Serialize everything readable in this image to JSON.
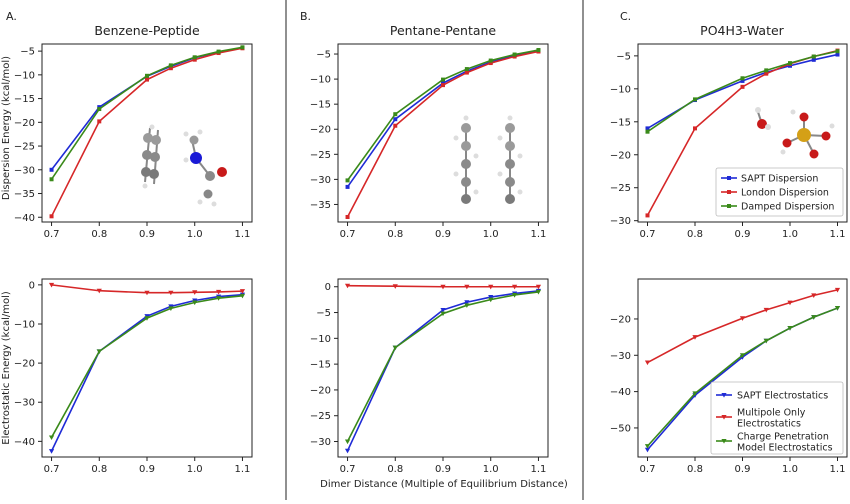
{
  "panels": [
    {
      "label": "A.",
      "title": "Benzene-Peptide"
    },
    {
      "label": "B.",
      "title": "Pentane-Pentane"
    },
    {
      "label": "C.",
      "title": "PO4H3-Water"
    }
  ],
  "ylabel_top": "Dispersion Energy (kcal/mol)",
  "ylabel_bottom": "Electrostatic Energy (kcal/mol)",
  "xlabel": "Dimer Distance (Multiple of Equilibrium Distance)",
  "legend_top": [
    "SAPT Dispersion",
    "London Dispersion",
    "Damped Dispersion"
  ],
  "legend_bottom": [
    [
      "SAPT Electrostatics"
    ],
    [
      "Multipole Only",
      "Electrostatics"
    ],
    [
      "Charge Penetration",
      "Model Electrostatics"
    ]
  ],
  "colors": {
    "sapt": "#1f2bd6",
    "london": "#d62728",
    "damped": "#3a8a1a"
  },
  "chart_data": [
    {
      "type": "line",
      "panel": "A.",
      "title": "Benzene-Peptide",
      "ylabel": "Dispersion Energy (kcal/mol)",
      "x": [
        0.7,
        0.8,
        0.9,
        0.95,
        1.0,
        1.05,
        1.1
      ],
      "xticks": [
        0.7,
        0.8,
        0.9,
        1.0,
        1.1
      ],
      "ylim": [
        -41,
        -3.5
      ],
      "yticks": [
        -40,
        -35,
        -30,
        -25,
        -20,
        -15,
        -10,
        -5
      ],
      "series": [
        {
          "name": "SAPT Dispersion",
          "values": [
            -30.0,
            -16.8,
            -10.3,
            -8.2,
            -6.4,
            -5.2,
            -4.3
          ]
        },
        {
          "name": "London Dispersion",
          "values": [
            -39.8,
            -19.8,
            -11.0,
            -8.6,
            -6.8,
            -5.4,
            -4.4
          ]
        },
        {
          "name": "Damped Dispersion",
          "values": [
            -32.0,
            -17.2,
            -10.2,
            -8.0,
            -6.3,
            -5.1,
            -4.2
          ]
        }
      ]
    },
    {
      "type": "line",
      "panel": "B.",
      "title": "Pentane-Pentane",
      "x": [
        0.7,
        0.8,
        0.9,
        0.95,
        1.0,
        1.05,
        1.1
      ],
      "xticks": [
        0.7,
        0.8,
        0.9,
        1.0,
        1.1
      ],
      "ylim": [
        -38.5,
        -3
      ],
      "yticks": [
        -35,
        -30,
        -25,
        -20,
        -15,
        -10,
        -5
      ],
      "series": [
        {
          "name": "SAPT Dispersion",
          "values": [
            -31.5,
            -18.0,
            -10.8,
            -8.4,
            -6.6,
            -5.3,
            -4.4
          ]
        },
        {
          "name": "London Dispersion",
          "values": [
            -37.5,
            -19.3,
            -11.2,
            -8.7,
            -6.8,
            -5.5,
            -4.5
          ]
        },
        {
          "name": "Damped Dispersion",
          "values": [
            -30.2,
            -17.0,
            -10.1,
            -8.0,
            -6.3,
            -5.1,
            -4.2
          ]
        }
      ]
    },
    {
      "type": "line",
      "panel": "C.",
      "title": "PO4H3-Water",
      "x": [
        0.7,
        0.8,
        0.9,
        0.95,
        1.0,
        1.05,
        1.1
      ],
      "xticks": [
        0.7,
        0.8,
        0.9,
        1.0,
        1.1
      ],
      "ylim": [
        -30.2,
        -3.2
      ],
      "yticks": [
        -30,
        -25,
        -20,
        -15,
        -10,
        -5
      ],
      "legend": "right",
      "series": [
        {
          "name": "SAPT Dispersion",
          "values": [
            -16.0,
            -11.7,
            -8.8,
            -7.5,
            -6.5,
            -5.6,
            -4.8
          ]
        },
        {
          "name": "London Dispersion",
          "values": [
            -29.2,
            -16.0,
            -9.7,
            -7.7,
            -6.2,
            -5.1,
            -4.2
          ]
        },
        {
          "name": "Damped Dispersion",
          "values": [
            -16.5,
            -11.6,
            -8.4,
            -7.2,
            -6.1,
            -5.1,
            -4.3
          ]
        }
      ]
    },
    {
      "type": "line",
      "panel": "A.",
      "ylabel": "Electrostatic Energy (kcal/mol)",
      "x": [
        0.7,
        0.8,
        0.9,
        0.95,
        1.0,
        1.05,
        1.1
      ],
      "xticks": [
        0.7,
        0.8,
        0.9,
        1.0,
        1.1
      ],
      "ylim": [
        -44,
        1.5
      ],
      "yticks": [
        -40,
        -30,
        -20,
        -10,
        0
      ],
      "series": [
        {
          "name": "SAPT Electrostatics",
          "values": [
            -42.5,
            -17.0,
            -8.0,
            -5.5,
            -4.0,
            -3.0,
            -2.5
          ]
        },
        {
          "name": "Multipole Only Electrostatics",
          "values": [
            0.0,
            -1.5,
            -2.0,
            -2.0,
            -1.9,
            -1.8,
            -1.6
          ]
        },
        {
          "name": "Charge Penetration Model Electrostatics",
          "values": [
            -39.0,
            -17.0,
            -8.5,
            -6.0,
            -4.5,
            -3.4,
            -2.8
          ]
        }
      ]
    },
    {
      "type": "line",
      "panel": "B.",
      "xlabel": "Dimer Distance (Multiple of Equilibrium Distance)",
      "x": [
        0.7,
        0.8,
        0.9,
        0.95,
        1.0,
        1.05,
        1.1
      ],
      "xticks": [
        0.7,
        0.8,
        0.9,
        1.0,
        1.1
      ],
      "ylim": [
        -33,
        1.5
      ],
      "yticks": [
        -30,
        -25,
        -20,
        -15,
        -10,
        -5,
        0
      ],
      "series": [
        {
          "name": "SAPT Electrostatics",
          "values": [
            -31.8,
            -11.8,
            -4.5,
            -3.0,
            -2.0,
            -1.3,
            -0.8
          ]
        },
        {
          "name": "Multipole Only Electrostatics",
          "values": [
            0.2,
            0.1,
            0.0,
            0.0,
            0.0,
            0.0,
            0.0
          ]
        },
        {
          "name": "Charge Penetration Model Electrostatics",
          "values": [
            -30.0,
            -11.8,
            -5.2,
            -3.6,
            -2.5,
            -1.6,
            -1.0
          ]
        }
      ]
    },
    {
      "type": "line",
      "panel": "C.",
      "x": [
        0.7,
        0.8,
        0.9,
        0.95,
        1.0,
        1.05,
        1.1
      ],
      "xticks": [
        0.7,
        0.8,
        0.9,
        1.0,
        1.1
      ],
      "ylim": [
        -58,
        -9
      ],
      "yticks": [
        -50,
        -40,
        -30,
        -20
      ],
      "legend": "lower right",
      "series": [
        {
          "name": "SAPT Electrostatics",
          "values": [
            -56.0,
            -41.0,
            -30.5,
            -26.0,
            -22.5,
            -19.5,
            -17.0
          ]
        },
        {
          "name": "Multipole Only Electrostatics",
          "values": [
            -32.0,
            -25.0,
            -19.8,
            -17.5,
            -15.5,
            -13.5,
            -12.0
          ]
        },
        {
          "name": "Charge Penetration Model Electrostatics",
          "values": [
            -55.0,
            -40.5,
            -30.0,
            -26.0,
            -22.5,
            -19.5,
            -17.0
          ]
        }
      ]
    }
  ]
}
